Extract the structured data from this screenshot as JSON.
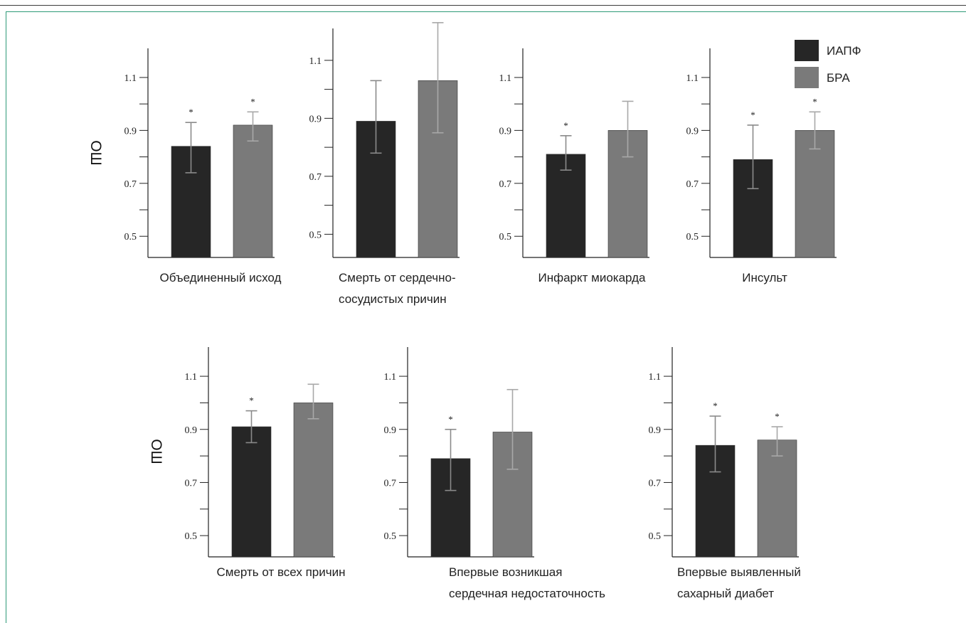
{
  "ylabel": "ОШ",
  "legend": [
    {
      "name": "ИАПФ",
      "color": "#262626"
    },
    {
      "name": "БРА",
      "color": "#7a7a7a"
    }
  ],
  "chart_data": [
    {
      "type": "bar",
      "category_label": [
        "Объединенный исход"
      ],
      "series": [
        {
          "name": "ИАПФ",
          "value": 0.84,
          "err_low": 0.74,
          "err_high": 0.93,
          "significant": true
        },
        {
          "name": "БРА",
          "value": 0.92,
          "err_low": 0.86,
          "err_high": 0.97,
          "significant": true
        }
      ],
      "yticks": [
        "0.5",
        "0.7",
        "0.9",
        "1.1"
      ],
      "ylim": [
        0.42,
        1.21
      ]
    },
    {
      "type": "bar",
      "category_label": [
        "Смерть от сердечно-",
        "сосудистых причин"
      ],
      "series": [
        {
          "name": "ИАПФ",
          "value": 0.89,
          "err_low": 0.78,
          "err_high": 1.03,
          "significant": false
        },
        {
          "name": "БРА",
          "value": 1.03,
          "err_low": 0.85,
          "err_high": 1.23,
          "significant": false
        }
      ],
      "yticks": [
        "0.5",
        "0.7",
        "0.9",
        "1.1"
      ],
      "ylim": [
        0.42,
        1.21
      ]
    },
    {
      "type": "bar",
      "category_label": [
        "Инфаркт миокарда"
      ],
      "series": [
        {
          "name": "ИАПФ",
          "value": 0.81,
          "err_low": 0.75,
          "err_high": 0.88,
          "significant": true
        },
        {
          "name": "БРА",
          "value": 0.9,
          "err_low": 0.8,
          "err_high": 1.01,
          "significant": false
        }
      ],
      "yticks": [
        "0.5",
        "0.7",
        "0.9",
        "1.1"
      ],
      "ylim": [
        0.42,
        1.21
      ]
    },
    {
      "type": "bar",
      "category_label": [
        "Инсульт"
      ],
      "series": [
        {
          "name": "ИАПФ",
          "value": 0.79,
          "err_low": 0.68,
          "err_high": 0.92,
          "significant": true
        },
        {
          "name": "БРА",
          "value": 0.9,
          "err_low": 0.83,
          "err_high": 0.97,
          "significant": true
        }
      ],
      "yticks": [
        "0.5",
        "0.7",
        "0.9",
        "1.1"
      ],
      "ylim": [
        0.42,
        1.21
      ]
    },
    {
      "type": "bar",
      "category_label": [
        "Смерть от всех причин"
      ],
      "series": [
        {
          "name": "ИАПФ",
          "value": 0.91,
          "err_low": 0.85,
          "err_high": 0.97,
          "significant": true
        },
        {
          "name": "БРА",
          "value": 1.0,
          "err_low": 0.94,
          "err_high": 1.07,
          "significant": false
        }
      ],
      "yticks": [
        "0.5",
        "0.7",
        "0.9",
        "1.1"
      ],
      "ylim": [
        0.42,
        1.21
      ]
    },
    {
      "type": "bar",
      "category_label": [
        "Впервые возникшая",
        "сердечная недостаточность"
      ],
      "series": [
        {
          "name": "ИАПФ",
          "value": 0.79,
          "err_low": 0.67,
          "err_high": 0.9,
          "significant": true
        },
        {
          "name": "БРА",
          "value": 0.89,
          "err_low": 0.75,
          "err_high": 1.05,
          "significant": false
        }
      ],
      "yticks": [
        "0.5",
        "0.7",
        "0.9",
        "1.1"
      ],
      "ylim": [
        0.42,
        1.21
      ]
    },
    {
      "type": "bar",
      "category_label": [
        "Впервые выявленный",
        "сахарный диабет"
      ],
      "series": [
        {
          "name": "ИАПФ",
          "value": 0.84,
          "err_low": 0.74,
          "err_high": 0.95,
          "significant": true
        },
        {
          "name": "БРА",
          "value": 0.86,
          "err_low": 0.8,
          "err_high": 0.91,
          "significant": true
        }
      ],
      "yticks": [
        "0.5",
        "0.7",
        "0.9",
        "1.1"
      ],
      "ylim": [
        0.42,
        1.21
      ]
    }
  ]
}
